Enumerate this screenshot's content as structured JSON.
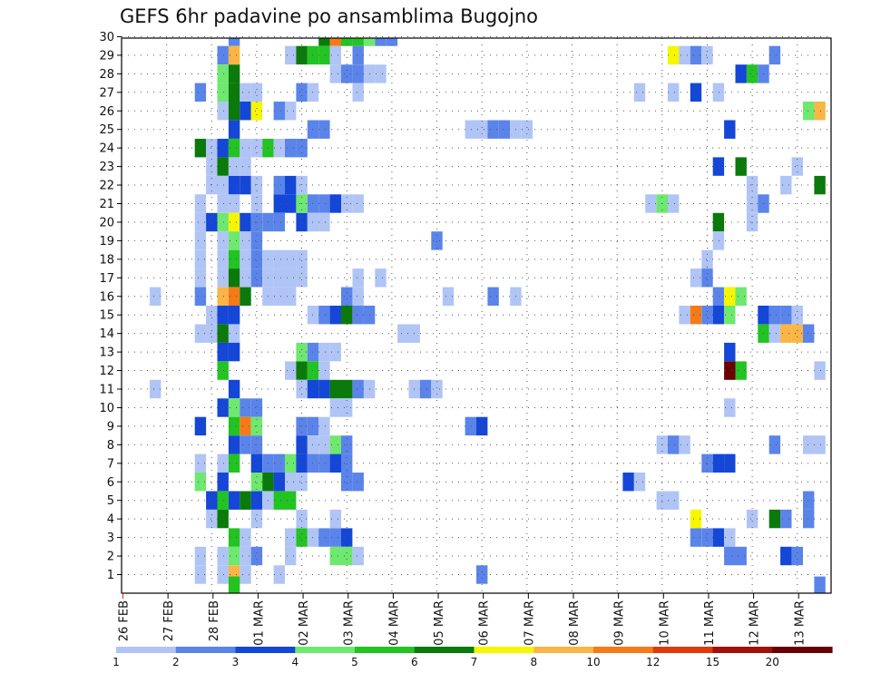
{
  "chart_data": {
    "type": "heatmap",
    "title": "GEFS 6hr padavine po ansamblima Bugojno",
    "y_ticks": [
      "1",
      "2",
      "3",
      "4",
      "5",
      "6",
      "7",
      "8",
      "9",
      "10",
      "11",
      "12",
      "13",
      "14",
      "15",
      "16",
      "17",
      "18",
      "19",
      "20",
      "21",
      "22",
      "23",
      "24",
      "25",
      "26",
      "27",
      "28",
      "29",
      "30"
    ],
    "x_ticks": [
      "26 FEB",
      "27 FEB",
      "28 FEB",
      "01 MAR",
      "02 MAR",
      "03 MAR",
      "04 MAR",
      "05 MAR",
      "06 MAR",
      "07 MAR",
      "08 MAR",
      "09 MAR",
      "10 MAR",
      "11 MAR",
      "12 MAR",
      "13 MAR"
    ],
    "grid": "dotted",
    "colorbar": {
      "ticks": [
        "1",
        "2",
        "3",
        "4",
        "5",
        "6",
        "7",
        "8",
        "10",
        "12",
        "15",
        "20"
      ],
      "colors": [
        "#b0c4f5",
        "#5a84ea",
        "#1446d8",
        "#6ee86e",
        "#22c322",
        "#0a7a0a",
        "#f6f600",
        "#f9b545",
        "#f57a18",
        "#e03a0a",
        "#a01008",
        "#6a0000"
      ]
    },
    "cells": [
      [
        30,
        5,
        2
      ],
      [
        30,
        9,
        6
      ],
      [
        30,
        9.5,
        9
      ],
      [
        30,
        10,
        5
      ],
      [
        30,
        10.5,
        5
      ],
      [
        30,
        11,
        4
      ],
      [
        30,
        11.5,
        2
      ],
      [
        30,
        12,
        2
      ],
      [
        29,
        4.5,
        2
      ],
      [
        29,
        5,
        8
      ],
      [
        29,
        7.5,
        1
      ],
      [
        29,
        8,
        6
      ],
      [
        29,
        8.5,
        5
      ],
      [
        29,
        9,
        5
      ],
      [
        29,
        9.5,
        1
      ],
      [
        29,
        10.5,
        2
      ],
      [
        29,
        24.5,
        7
      ],
      [
        29,
        25,
        1
      ],
      [
        29,
        25.5,
        2
      ],
      [
        29,
        26,
        1
      ],
      [
        29,
        29,
        2
      ],
      [
        28,
        4.5,
        4
      ],
      [
        28,
        5,
        6
      ],
      [
        28,
        9.5,
        1
      ],
      [
        28,
        10,
        2
      ],
      [
        28,
        10.5,
        2
      ],
      [
        28,
        11,
        1
      ],
      [
        28,
        11.5,
        1
      ],
      [
        28,
        27.5,
        3
      ],
      [
        28,
        28,
        5
      ],
      [
        28,
        28.5,
        2
      ],
      [
        27,
        3.5,
        2
      ],
      [
        27,
        4.5,
        4
      ],
      [
        27,
        5,
        6
      ],
      [
        27,
        5.5,
        1
      ],
      [
        27,
        6,
        1
      ],
      [
        27,
        8,
        2
      ],
      [
        27,
        8.5,
        1
      ],
      [
        27,
        10.5,
        1
      ],
      [
        27,
        23,
        1
      ],
      [
        27,
        24.5,
        1
      ],
      [
        27,
        25.5,
        3
      ],
      [
        27,
        26.5,
        1
      ],
      [
        26,
        4.5,
        1
      ],
      [
        26,
        5,
        6
      ],
      [
        26,
        5.5,
        3
      ],
      [
        26,
        6,
        7
      ],
      [
        26,
        7,
        2
      ],
      [
        26,
        7.5,
        1
      ],
      [
        26,
        30.5,
        4
      ],
      [
        26,
        31,
        8
      ],
      [
        25,
        5,
        3
      ],
      [
        25,
        8.5,
        2
      ],
      [
        25,
        9,
        2
      ],
      [
        25,
        15.5,
        1
      ],
      [
        25,
        16,
        1
      ],
      [
        25,
        16.5,
        2
      ],
      [
        25,
        17,
        2
      ],
      [
        25,
        17.5,
        1
      ],
      [
        25,
        18,
        1
      ],
      [
        25,
        27,
        3
      ],
      [
        24,
        3.5,
        6
      ],
      [
        24,
        4,
        1
      ],
      [
        24,
        4.5,
        3
      ],
      [
        24,
        5,
        5
      ],
      [
        24,
        5.5,
        1
      ],
      [
        24,
        6,
        1
      ],
      [
        24,
        6.5,
        5
      ],
      [
        24,
        7,
        1
      ],
      [
        24,
        7.5,
        2
      ],
      [
        24,
        8,
        2
      ],
      [
        23,
        4,
        1
      ],
      [
        23,
        4.5,
        6
      ],
      [
        23,
        5,
        1
      ],
      [
        23,
        5.5,
        1
      ],
      [
        23,
        26.5,
        3
      ],
      [
        23,
        27.5,
        6
      ],
      [
        23,
        30,
        1
      ],
      [
        22,
        4,
        1
      ],
      [
        22,
        4.5,
        1
      ],
      [
        22,
        5,
        3
      ],
      [
        22,
        5.5,
        3
      ],
      [
        22,
        6,
        1
      ],
      [
        22,
        7,
        2
      ],
      [
        22,
        7.5,
        3
      ],
      [
        22,
        8,
        1
      ],
      [
        22,
        28,
        1
      ],
      [
        22,
        29.5,
        1
      ],
      [
        22,
        31,
        6
      ],
      [
        21,
        3.5,
        1
      ],
      [
        21,
        4.5,
        1
      ],
      [
        21,
        5,
        1
      ],
      [
        21,
        6,
        1
      ],
      [
        21,
        7,
        3
      ],
      [
        21,
        7.5,
        3
      ],
      [
        21,
        8,
        4
      ],
      [
        21,
        8.5,
        2
      ],
      [
        21,
        9,
        2
      ],
      [
        21,
        9.5,
        3
      ],
      [
        21,
        10,
        1
      ],
      [
        21,
        10.5,
        1
      ],
      [
        21,
        23.5,
        1
      ],
      [
        21,
        24,
        4
      ],
      [
        21,
        24.5,
        1
      ],
      [
        21,
        28,
        1
      ],
      [
        21,
        28.5,
        2
      ],
      [
        20,
        3.5,
        1
      ],
      [
        20,
        4,
        3
      ],
      [
        20,
        4.5,
        4
      ],
      [
        20,
        5,
        7
      ],
      [
        20,
        5.5,
        3
      ],
      [
        20,
        6,
        2
      ],
      [
        20,
        6.5,
        2
      ],
      [
        20,
        7,
        2
      ],
      [
        20,
        8,
        3
      ],
      [
        20,
        8.5,
        1
      ],
      [
        20,
        9,
        1
      ],
      [
        20,
        26.5,
        6
      ],
      [
        20,
        28,
        1
      ],
      [
        19,
        3.5,
        1
      ],
      [
        19,
        4.5,
        1
      ],
      [
        19,
        5,
        4
      ],
      [
        19,
        5.5,
        1
      ],
      [
        19,
        6,
        2
      ],
      [
        19,
        14,
        2
      ],
      [
        19,
        26.5,
        1
      ],
      [
        18,
        3.5,
        1
      ],
      [
        18,
        4.5,
        1
      ],
      [
        18,
        5,
        5
      ],
      [
        18,
        5.5,
        1
      ],
      [
        18,
        6,
        2
      ],
      [
        18,
        6.5,
        1
      ],
      [
        18,
        7,
        1
      ],
      [
        18,
        7.5,
        1
      ],
      [
        18,
        8,
        1
      ],
      [
        18,
        26,
        1
      ],
      [
        17,
        3.5,
        1
      ],
      [
        17,
        4.5,
        1
      ],
      [
        17,
        5,
        6
      ],
      [
        17,
        5.5,
        1
      ],
      [
        17,
        6,
        2
      ],
      [
        17,
        6.5,
        1
      ],
      [
        17,
        7,
        1
      ],
      [
        17,
        7.5,
        1
      ],
      [
        17,
        8,
        1
      ],
      [
        17,
        10.5,
        1
      ],
      [
        17,
        11.5,
        1
      ],
      [
        17,
        25.5,
        1
      ],
      [
        17,
        26,
        2
      ],
      [
        16,
        1.5,
        1
      ],
      [
        16,
        3.5,
        2
      ],
      [
        16,
        4.5,
        8
      ],
      [
        16,
        5,
        9
      ],
      [
        16,
        5.5,
        6
      ],
      [
        16,
        6.5,
        1
      ],
      [
        16,
        7,
        1
      ],
      [
        16,
        7.5,
        1
      ],
      [
        16,
        10,
        2
      ],
      [
        16,
        10.5,
        1
      ],
      [
        16,
        14.5,
        1
      ],
      [
        16,
        16.5,
        2
      ],
      [
        16,
        17.5,
        1
      ],
      [
        16,
        26.5,
        2
      ],
      [
        16,
        27,
        7
      ],
      [
        16,
        27.5,
        4
      ],
      [
        15,
        4,
        1
      ],
      [
        15,
        4.5,
        3
      ],
      [
        15,
        5,
        3
      ],
      [
        15,
        8.5,
        1
      ],
      [
        15,
        9,
        2
      ],
      [
        15,
        9.5,
        3
      ],
      [
        15,
        10,
        6
      ],
      [
        15,
        10.5,
        2
      ],
      [
        15,
        11,
        2
      ],
      [
        15,
        25,
        1
      ],
      [
        15,
        25.5,
        9
      ],
      [
        15,
        26,
        2
      ],
      [
        15,
        26.5,
        3
      ],
      [
        15,
        27,
        4
      ],
      [
        15,
        28.5,
        3
      ],
      [
        15,
        29,
        2
      ],
      [
        15,
        29.5,
        2
      ],
      [
        15,
        30,
        1
      ],
      [
        14,
        3.5,
        1
      ],
      [
        14,
        4,
        1
      ],
      [
        14,
        4.5,
        6
      ],
      [
        14,
        5,
        1
      ],
      [
        14,
        12.5,
        1
      ],
      [
        14,
        13,
        1
      ],
      [
        14,
        28.5,
        5
      ],
      [
        14,
        29,
        1
      ],
      [
        14,
        29.5,
        8
      ],
      [
        14,
        30,
        8
      ],
      [
        14,
        30.5,
        2
      ],
      [
        13,
        4.5,
        3
      ],
      [
        13,
        5,
        3
      ],
      [
        13,
        8,
        4
      ],
      [
        13,
        8.5,
        2
      ],
      [
        13,
        9,
        1
      ],
      [
        13,
        9.5,
        1
      ],
      [
        13,
        27,
        3
      ],
      [
        12,
        4.5,
        5
      ],
      [
        12,
        7.5,
        1
      ],
      [
        12,
        8,
        6
      ],
      [
        12,
        8.5,
        5
      ],
      [
        12,
        9,
        1
      ],
      [
        12,
        27,
        12
      ],
      [
        12,
        27.5,
        5
      ],
      [
        12,
        31,
        1
      ],
      [
        11,
        1.5,
        1
      ],
      [
        11,
        5,
        3
      ],
      [
        11,
        8,
        1
      ],
      [
        11,
        8.5,
        3
      ],
      [
        11,
        9,
        3
      ],
      [
        11,
        9.5,
        6
      ],
      [
        11,
        10,
        6
      ],
      [
        11,
        10.5,
        2
      ],
      [
        11,
        11,
        1
      ],
      [
        11,
        13,
        1
      ],
      [
        11,
        13.5,
        2
      ],
      [
        11,
        14,
        1
      ],
      [
        10,
        4.5,
        3
      ],
      [
        10,
        5,
        4
      ],
      [
        10,
        5.5,
        2
      ],
      [
        10,
        6,
        2
      ],
      [
        10,
        9.5,
        1
      ],
      [
        10,
        10,
        1
      ],
      [
        10,
        27,
        1
      ],
      [
        9,
        3.5,
        3
      ],
      [
        9,
        5,
        5
      ],
      [
        9,
        5.5,
        9
      ],
      [
        9,
        6,
        4
      ],
      [
        9,
        8,
        2
      ],
      [
        9,
        8.5,
        2
      ],
      [
        9,
        9,
        1
      ],
      [
        9,
        15.5,
        2
      ],
      [
        9,
        16,
        3
      ],
      [
        8,
        5,
        3
      ],
      [
        8,
        5.5,
        2
      ],
      [
        8,
        6,
        2
      ],
      [
        8,
        8,
        3
      ],
      [
        8,
        8.5,
        1
      ],
      [
        8,
        9,
        1
      ],
      [
        8,
        9.5,
        4
      ],
      [
        8,
        10,
        2
      ],
      [
        8,
        24,
        1
      ],
      [
        8,
        24.5,
        2
      ],
      [
        8,
        25,
        1
      ],
      [
        8,
        29,
        2
      ],
      [
        8,
        30.5,
        1
      ],
      [
        8,
        31,
        1
      ],
      [
        7,
        3.5,
        1
      ],
      [
        7,
        4.5,
        1
      ],
      [
        7,
        5,
        5
      ],
      [
        7,
        6,
        3
      ],
      [
        7,
        6.5,
        2
      ],
      [
        7,
        7,
        2
      ],
      [
        7,
        7.5,
        4
      ],
      [
        7,
        8,
        3
      ],
      [
        7,
        8.5,
        2
      ],
      [
        7,
        9,
        2
      ],
      [
        7,
        9.5,
        3
      ],
      [
        7,
        10,
        2
      ],
      [
        7,
        26,
        2
      ],
      [
        7,
        26.5,
        3
      ],
      [
        7,
        27,
        3
      ],
      [
        6,
        3.5,
        4
      ],
      [
        6,
        4.5,
        3
      ],
      [
        6,
        6,
        4
      ],
      [
        6,
        6.5,
        6
      ],
      [
        6,
        7,
        3
      ],
      [
        6,
        7.5,
        1
      ],
      [
        6,
        8,
        1
      ],
      [
        6,
        10,
        2
      ],
      [
        6,
        10.5,
        2
      ],
      [
        6,
        22.5,
        3
      ],
      [
        6,
        23,
        1
      ],
      [
        5,
        4,
        3
      ],
      [
        5,
        4.5,
        5
      ],
      [
        5,
        5,
        3
      ],
      [
        5,
        5.5,
        6
      ],
      [
        5,
        6,
        3
      ],
      [
        5,
        6.5,
        1
      ],
      [
        5,
        7,
        5
      ],
      [
        5,
        7.5,
        5
      ],
      [
        5,
        24,
        1
      ],
      [
        5,
        24.5,
        1
      ],
      [
        5,
        30.5,
        2
      ],
      [
        4,
        4,
        1
      ],
      [
        4,
        4.5,
        6
      ],
      [
        4,
        6,
        1
      ],
      [
        4,
        8,
        1
      ],
      [
        4,
        9.5,
        1
      ],
      [
        4,
        25.5,
        7
      ],
      [
        4,
        28,
        1
      ],
      [
        4,
        29,
        6
      ],
      [
        4,
        29.5,
        2
      ],
      [
        4,
        30.5,
        2
      ],
      [
        3,
        5,
        5
      ],
      [
        3,
        5.5,
        1
      ],
      [
        3,
        7.5,
        1
      ],
      [
        3,
        8,
        5
      ],
      [
        3,
        8.5,
        1
      ],
      [
        3,
        9,
        2
      ],
      [
        3,
        9.5,
        2
      ],
      [
        3,
        10,
        3
      ],
      [
        3,
        25.5,
        2
      ],
      [
        3,
        26,
        2
      ],
      [
        3,
        26.5,
        3
      ],
      [
        3,
        27,
        1
      ],
      [
        2,
        3.5,
        1
      ],
      [
        2,
        4.5,
        1
      ],
      [
        2,
        5,
        4
      ],
      [
        2,
        5.5,
        1
      ],
      [
        2,
        6,
        2
      ],
      [
        2,
        7.5,
        1
      ],
      [
        2,
        9.5,
        4
      ],
      [
        2,
        10,
        4
      ],
      [
        2,
        10.5,
        1
      ],
      [
        2,
        27,
        2
      ],
      [
        2,
        27.5,
        2
      ],
      [
        2,
        29.5,
        3
      ],
      [
        2,
        30,
        2
      ],
      [
        1,
        3.5,
        1
      ],
      [
        1,
        4.5,
        1
      ],
      [
        1,
        5,
        8
      ],
      [
        1,
        5.5,
        1
      ],
      [
        1,
        7,
        1
      ],
      [
        1,
        16,
        2
      ],
      [
        0.4,
        5,
        5
      ],
      [
        0.4,
        31,
        2
      ]
    ]
  }
}
